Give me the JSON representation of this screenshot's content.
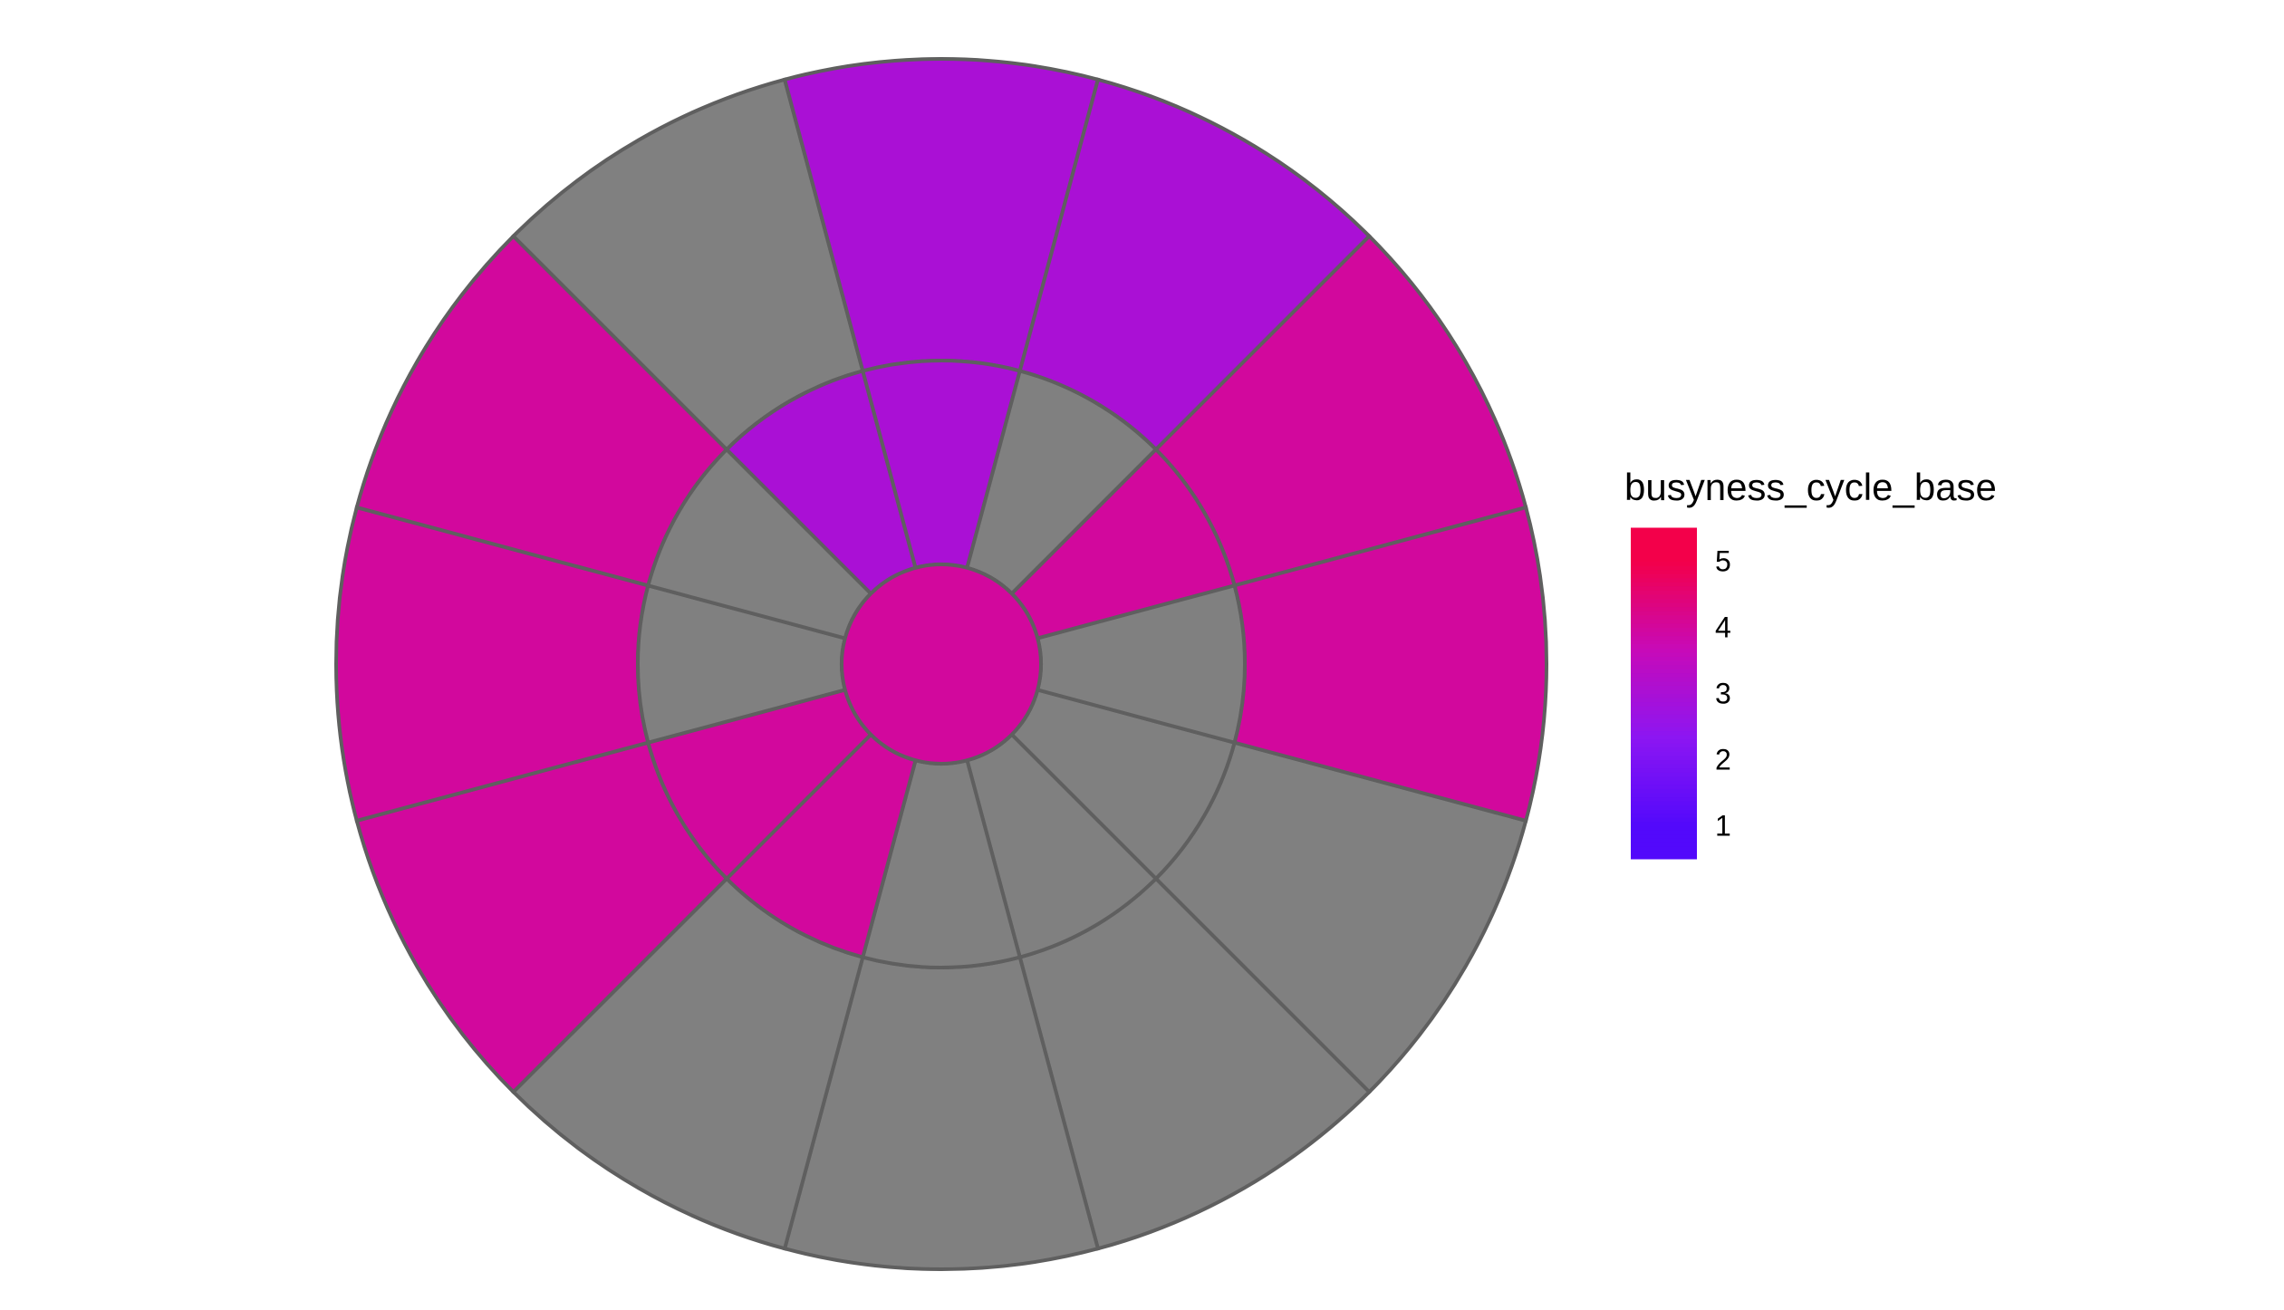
{
  "chart_data": {
    "type": "sunburst",
    "background": "#ffffff",
    "cell_border_color": "#5f5f5f",
    "na_color": "#808080",
    "center": {
      "value": 4
    },
    "inner_ring": [
      null,
      null,
      null,
      4,
      4,
      null,
      null,
      3,
      3,
      null,
      4,
      null
    ],
    "outer_ring": [
      null,
      null,
      null,
      null,
      4,
      4,
      4,
      null,
      3,
      3,
      4,
      4
    ],
    "legend": {
      "title": "busyness_cycle_base",
      "position": "right",
      "type": "colorbar",
      "range": [
        0.5,
        5.5
      ],
      "breaks": [
        1,
        2,
        3,
        4,
        5
      ],
      "labels": [
        "1",
        "2",
        "3",
        "4",
        "5"
      ],
      "colors": [
        "#5209fb",
        "#8c16f2",
        "#c70ab8",
        "#f3004a"
      ]
    }
  }
}
